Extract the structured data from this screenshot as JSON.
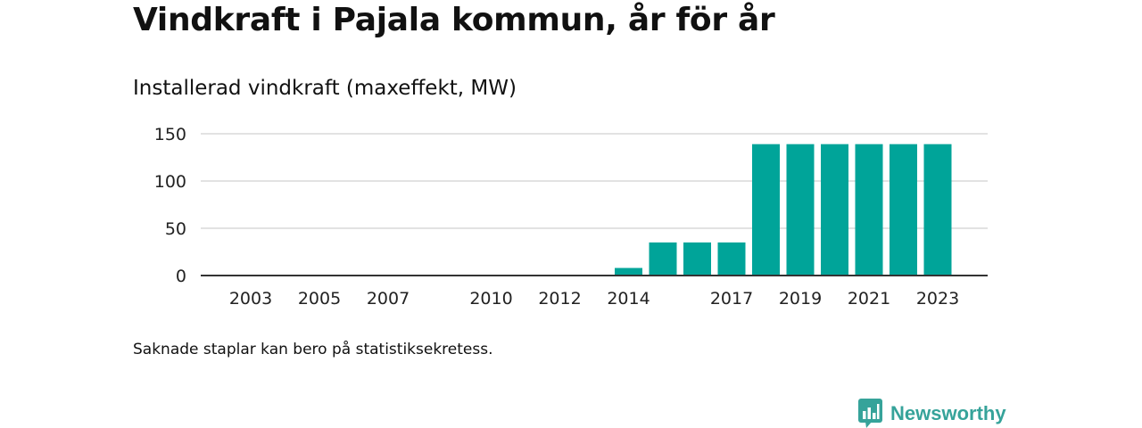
{
  "title": "Vindkraft i Pajala kommun, år för år",
  "subtitle": "Installerad vindkraft (maxeffekt, MW)",
  "note": "Saknade staplar kan bero på statistiksekretess.",
  "brand": {
    "name": "Newsworthy",
    "color": "#36a39a"
  },
  "colors": {
    "bar": "#00a499",
    "grid": "#d9d9d9",
    "axis": "#333333"
  },
  "chart_data": {
    "type": "bar",
    "title": "Vindkraft i Pajala kommun, år för år",
    "subtitle": "Installerad vindkraft (maxeffekt, MW)",
    "xlabel": "",
    "ylabel": "",
    "categories": [
      2002,
      2003,
      2004,
      2005,
      2006,
      2007,
      2008,
      2009,
      2010,
      2011,
      2012,
      2013,
      2014,
      2015,
      2016,
      2017,
      2018,
      2019,
      2020,
      2021,
      2022,
      2023
    ],
    "values": [
      0,
      0,
      0,
      0,
      0,
      0,
      0,
      0,
      0,
      0,
      0,
      0,
      8,
      35,
      35,
      35,
      139,
      139,
      139,
      139,
      139,
      139
    ],
    "x_tick_labels": [
      "2003",
      "2005",
      "2007",
      "2010",
      "2012",
      "2014",
      "2017",
      "2019",
      "2021",
      "2023"
    ],
    "y_ticks": [
      0,
      50,
      100,
      150
    ],
    "ylim": [
      0,
      150
    ],
    "grid": true,
    "legend": "none"
  }
}
